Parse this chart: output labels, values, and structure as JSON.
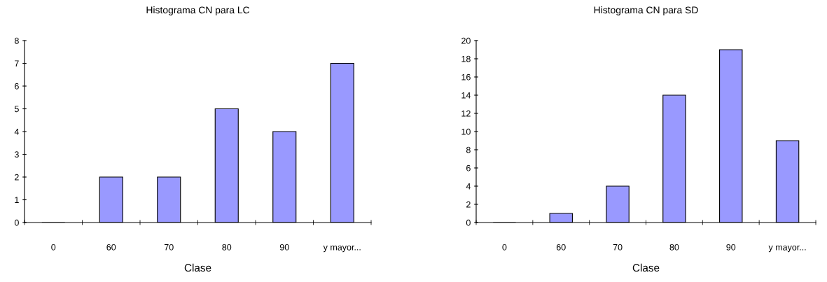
{
  "chart_data": [
    {
      "type": "bar",
      "title": "Histograma CN para LC",
      "xlabel": "Clase",
      "categories": [
        "0",
        "60",
        "70",
        "80",
        "90",
        "y mayor..."
      ],
      "values": [
        0,
        2,
        2,
        5,
        4,
        7
      ],
      "color": "#9999ff",
      "ylim": [
        0,
        8
      ],
      "yticks": [
        0,
        1,
        2,
        3,
        4,
        5,
        6,
        7,
        8
      ],
      "grid": false,
      "legend": false
    },
    {
      "type": "bar",
      "title": "Histograma CN para SD",
      "xlabel": "Clase",
      "categories": [
        "0",
        "60",
        "70",
        "80",
        "90",
        "y mayor..."
      ],
      "values": [
        0,
        1,
        4,
        14,
        19,
        9
      ],
      "color": "#9999ff",
      "ylim": [
        0,
        20
      ],
      "yticks": [
        0,
        2,
        4,
        6,
        8,
        10,
        12,
        14,
        16,
        18,
        20
      ],
      "grid": false,
      "legend": false
    }
  ]
}
